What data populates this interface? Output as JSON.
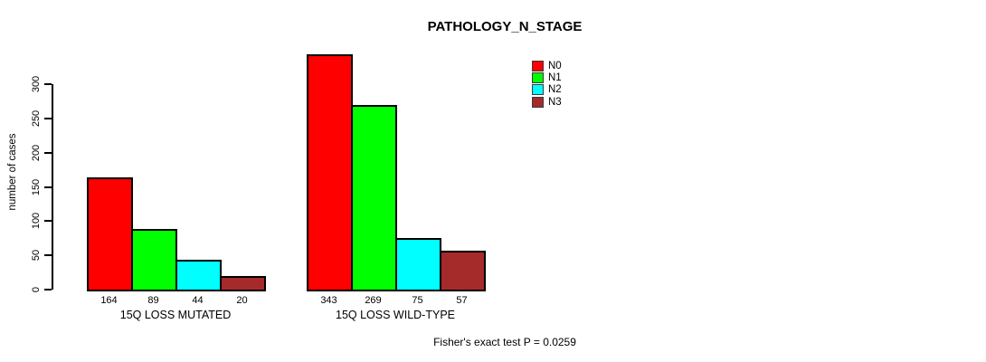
{
  "chart": {
    "title": "PATHOLOGY_N_STAGE",
    "ylabel": "number of cases",
    "footnote": "Fisher's exact test P = 0.0259"
  },
  "chart_data": {
    "type": "bar",
    "title": "PATHOLOGY_N_STAGE",
    "xlabel": "",
    "ylabel": "number of cases",
    "categories": [
      "15Q LOSS MUTATED",
      "15Q LOSS WILD-TYPE"
    ],
    "series": [
      {
        "name": "N0",
        "color": "#ff0000",
        "values": [
          164,
          343
        ]
      },
      {
        "name": "N1",
        "color": "#00ff00",
        "values": [
          89,
          269
        ]
      },
      {
        "name": "N2",
        "color": "#00ffff",
        "values": [
          44,
          75
        ]
      },
      {
        "name": "N3",
        "color": "#a52a2a",
        "values": [
          20,
          57
        ]
      }
    ],
    "bar_value_labels": [
      [
        "164",
        "89",
        "44",
        "20"
      ],
      [
        "343",
        "269",
        "75",
        "57"
      ]
    ],
    "yticks": [
      0,
      50,
      100,
      150,
      200,
      250,
      300
    ],
    "ylim": [
      0,
      343
    ],
    "grid": false,
    "legend_position": "top-right-inside",
    "legend_entries": [
      "N0",
      "N1",
      "N2",
      "N3"
    ],
    "annotation": "Fisher's exact test P = 0.0259",
    "colors": {
      "N0": "#ff0000",
      "N1": "#00ff00",
      "N2": "#00ffff",
      "N3": "#a52a2a",
      "bar_border": "#000000",
      "axis": "#000000",
      "background": "#ffffff"
    }
  }
}
